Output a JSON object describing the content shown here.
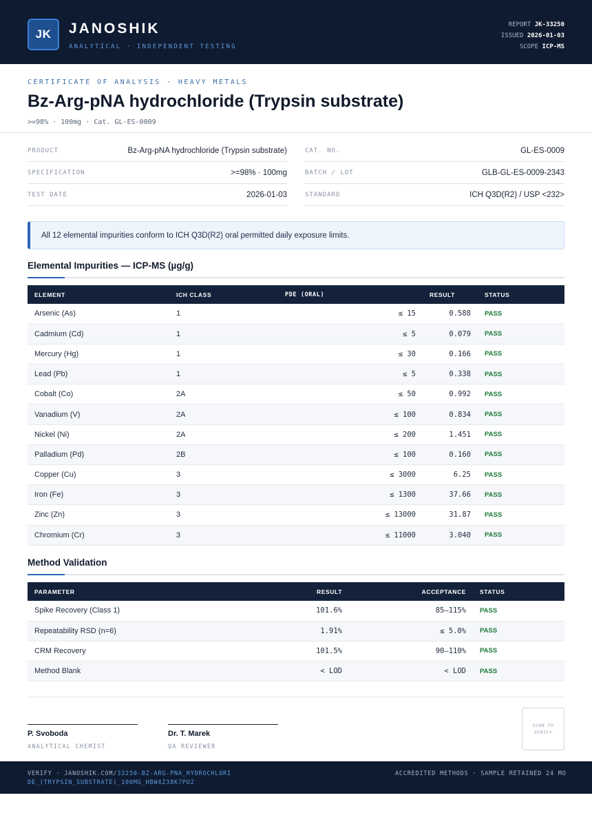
{
  "header": {
    "logo_initials": "JK",
    "brand": "JANOSHIK",
    "tagline": "ANALYTICAL · INDEPENDENT TESTING",
    "report_label": "REPORT",
    "report_value": "JK-33250",
    "issued_label": "ISSUED",
    "issued_value": "2026-01-03",
    "scope_label": "SCOPE",
    "scope_value": "ICP-MS"
  },
  "title_block": {
    "eyebrow": "CERTIFICATE OF ANALYSIS · HEAVY METALS",
    "title": "Bz-Arg-pNA hydrochloride (Trypsin substrate)",
    "subline": ">=98% · 100mg  ·  Cat. GL-ES-0009"
  },
  "info": {
    "product_label": "PRODUCT",
    "product_value": "Bz-Arg-pNA hydrochloride (Trypsin substrate)",
    "spec_label": "SPECIFICATION",
    "spec_value": ">=98% · 100mg",
    "date_label": "TEST DATE",
    "date_value": "2026-01-03",
    "cat_label": "CAT. NO.",
    "cat_value": "GL-ES-0009",
    "batch_label": "BATCH / LOT",
    "batch_value": "GLB-GL-ES-0009-2343",
    "standard_label": "STANDARD",
    "standard_value": "ICH Q3D(R2) / USP <232>"
  },
  "notice": "All 12 elemental impurities conform to ICH Q3D(R2) oral permitted daily exposure limits.",
  "impurities": {
    "title": "Elemental Impurities — ICP-MS (µg/g)",
    "headers": [
      "ELEMENT",
      "ICH CLASS",
      "PDE (ORAL)",
      "RESULT",
      "STATUS"
    ],
    "rows": [
      {
        "element": "Arsenic (As)",
        "class": "1",
        "pde": "≤ 15",
        "result": "0.588",
        "status": "PASS"
      },
      {
        "element": "Cadmium (Cd)",
        "class": "1",
        "pde": "≤ 5",
        "result": "0.079",
        "status": "PASS"
      },
      {
        "element": "Mercury (Hg)",
        "class": "1",
        "pde": "≤ 30",
        "result": "0.166",
        "status": "PASS"
      },
      {
        "element": "Lead (Pb)",
        "class": "1",
        "pde": "≤ 5",
        "result": "0.338",
        "status": "PASS"
      },
      {
        "element": "Cobalt (Co)",
        "class": "2A",
        "pde": "≤ 50",
        "result": "0.992",
        "status": "PASS"
      },
      {
        "element": "Vanadium (V)",
        "class": "2A",
        "pde": "≤ 100",
        "result": "0.834",
        "status": "PASS"
      },
      {
        "element": "Nickel (Ni)",
        "class": "2A",
        "pde": "≤ 200",
        "result": "1.451",
        "status": "PASS"
      },
      {
        "element": "Palladium (Pd)",
        "class": "2B",
        "pde": "≤ 100",
        "result": "0.160",
        "status": "PASS"
      },
      {
        "element": "Copper (Cu)",
        "class": "3",
        "pde": "≤ 3000",
        "result": "6.25",
        "status": "PASS"
      },
      {
        "element": "Iron (Fe)",
        "class": "3",
        "pde": "≤ 1300",
        "result": "37.66",
        "status": "PASS"
      },
      {
        "element": "Zinc (Zn)",
        "class": "3",
        "pde": "≤ 13000",
        "result": "31.87",
        "status": "PASS"
      },
      {
        "element": "Chromium (Cr)",
        "class": "3",
        "pde": "≤ 11000",
        "result": "3.040",
        "status": "PASS"
      }
    ]
  },
  "validation": {
    "title": "Method Validation",
    "headers": [
      "PARAMETER",
      "RESULT",
      "ACCEPTANCE",
      "STATUS"
    ],
    "rows": [
      {
        "parameter": "Spike Recovery (Class 1)",
        "result": "101.6%",
        "acceptance": "85–115%",
        "status": "PASS"
      },
      {
        "parameter": "Repeatability RSD (n=6)",
        "result": "1.91%",
        "acceptance": "≤ 5.0%",
        "status": "PASS"
      },
      {
        "parameter": "CRM Recovery",
        "result": "101.5%",
        "acceptance": "90–110%",
        "status": "PASS"
      },
      {
        "parameter": "Method Blank",
        "result": "< LOD",
        "acceptance": "< LOD",
        "status": "PASS"
      }
    ]
  },
  "signatures": [
    {
      "name": "P. Svoboda",
      "role": "ANALYTICAL CHEMIST"
    },
    {
      "name": "Dr. T. Marek",
      "role": "QA REVIEWER"
    }
  ],
  "qr_text": "SCAN TO VERIFY",
  "footer": {
    "verify_prefix": "VERIFY · JANOSHIK.COM/",
    "verify_link": "33250-BZ-ARG-PNA_HYDROCHLORIDE_(TRYPSIN_SUBSTRATE)_100MG_HBW4Z38K7PU2",
    "right": "ACCREDITED METHODS · SAMPLE RETAINED 24 MO"
  },
  "colors": {
    "navy": "#0f1b30",
    "accent_blue": "#2a66b8",
    "pass_green": "#1f7a3a"
  }
}
